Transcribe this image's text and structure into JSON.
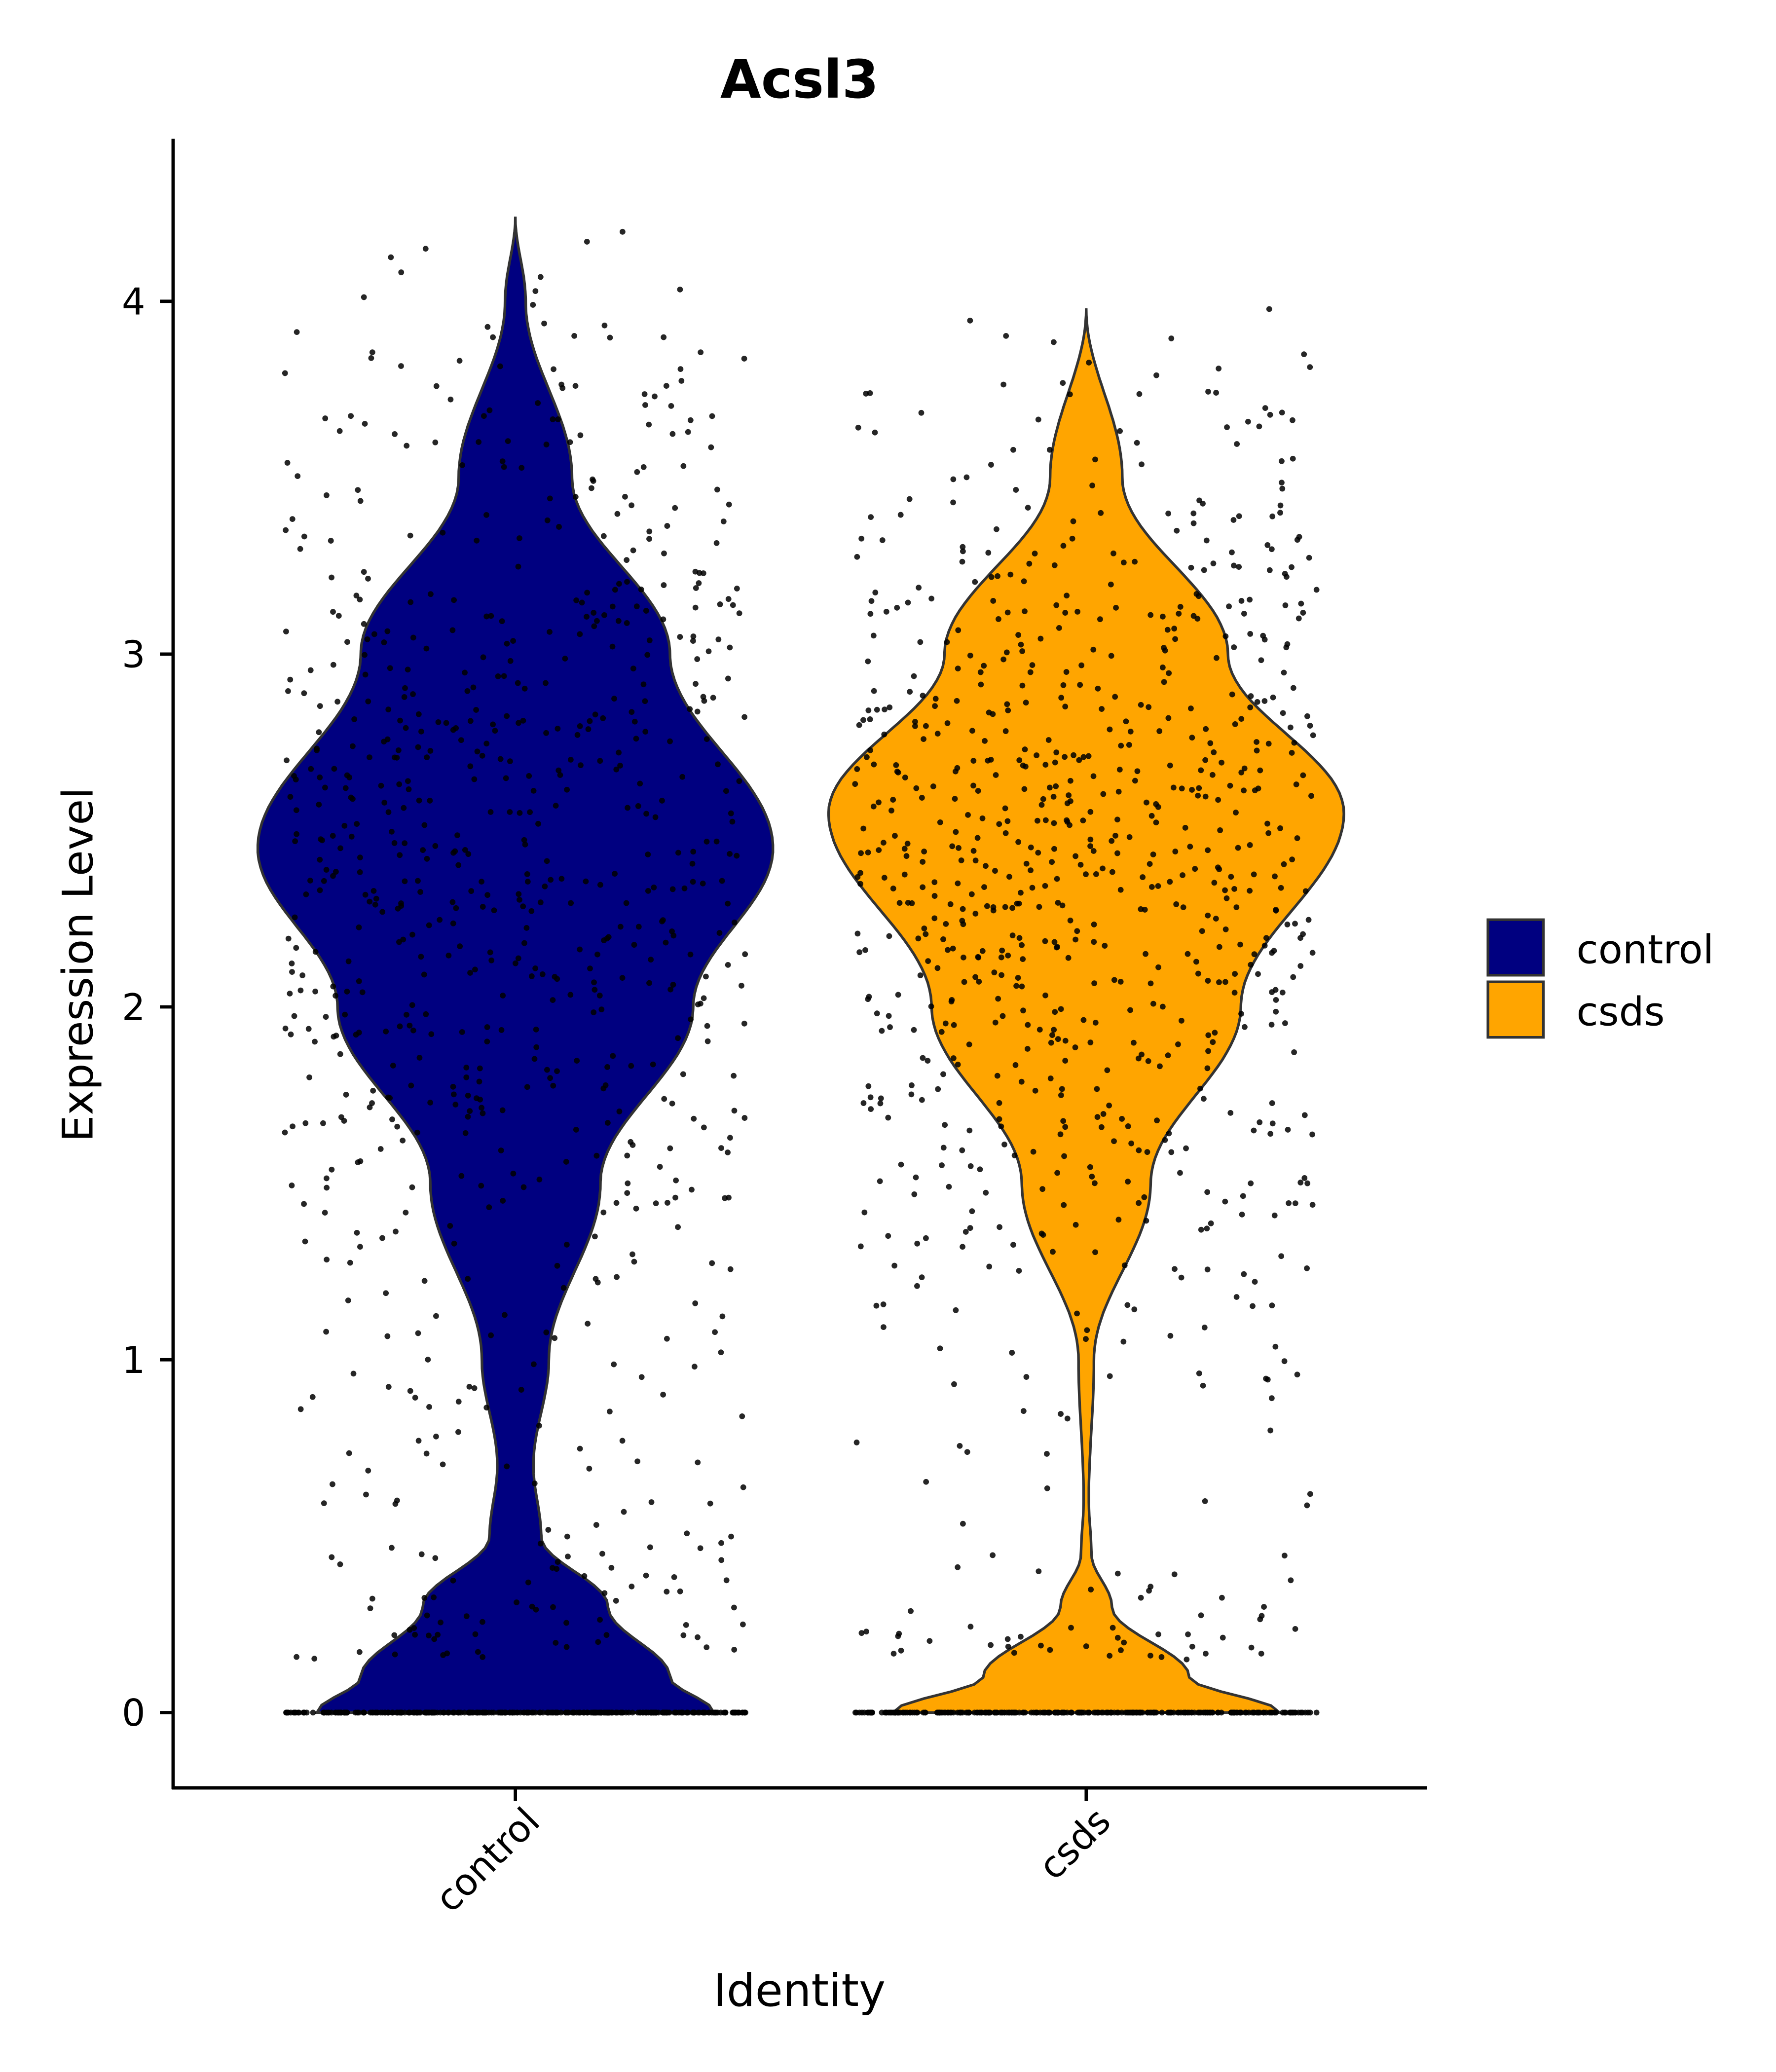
{
  "chart_data": {
    "type": "violin",
    "title": "Acsl3",
    "xlabel": "Identity",
    "ylabel": "Expression Level",
    "ylim": [
      -0.21,
      4.46
    ],
    "xlim": [
      0.4,
      2.6
    ],
    "yticks": [
      0,
      1,
      2,
      3,
      4
    ],
    "ytick_labels": [
      "0",
      "1",
      "2",
      "3",
      "4"
    ],
    "categories": [
      "control",
      "csds"
    ],
    "grid": false,
    "legend": {
      "placement": "right",
      "entries": [
        {
          "label": "control",
          "color": "#000080"
        },
        {
          "label": "csds",
          "color": "#FFA500"
        }
      ]
    },
    "series": [
      {
        "name": "control",
        "color": "#000080",
        "max": 4.24,
        "density": [
          [
            0,
            0.77
          ],
          [
            0.1,
            0.6
          ],
          [
            0.3,
            0.36
          ],
          [
            0.5,
            0.1
          ],
          [
            0.7,
            0.07
          ],
          [
            1.0,
            0.13
          ],
          [
            1.5,
            0.33
          ],
          [
            2.0,
            0.69
          ],
          [
            2.45,
            1.0
          ],
          [
            3.0,
            0.6
          ],
          [
            3.5,
            0.22
          ],
          [
            4.0,
            0.04
          ],
          [
            4.24,
            0
          ]
        ],
        "n_points": 1100,
        "zero_fraction": 0.3
      },
      {
        "name": "csds",
        "color": "#FFA500",
        "max": 3.98,
        "density": [
          [
            0,
            0.75
          ],
          [
            0.1,
            0.4
          ],
          [
            0.3,
            0.1
          ],
          [
            0.45,
            0.02
          ],
          [
            0.6,
            0.01
          ],
          [
            1.0,
            0.03
          ],
          [
            1.5,
            0.25
          ],
          [
            2.0,
            0.6
          ],
          [
            2.55,
            1.0
          ],
          [
            3.0,
            0.55
          ],
          [
            3.5,
            0.14
          ],
          [
            3.98,
            0
          ]
        ],
        "n_points": 1100,
        "zero_fraction": 0.25
      }
    ]
  }
}
